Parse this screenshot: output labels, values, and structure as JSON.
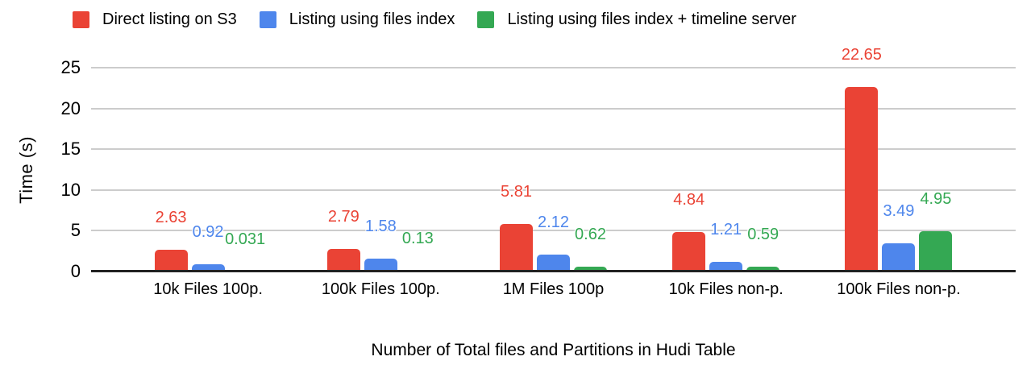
{
  "chart_data": {
    "type": "bar",
    "title": "",
    "xlabel": "Number of Total files and Partitions in Hudi Table",
    "ylabel": "Time (s)",
    "categories": [
      "10k Files 100p.",
      "100k Files 100p.",
      "1M Files 100p",
      "10k Files non-p.",
      "100k Files non-p."
    ],
    "series": [
      {
        "name": "Direct listing on S3",
        "color": "#EA4335",
        "values": [
          2.63,
          2.79,
          5.81,
          4.84,
          22.65
        ]
      },
      {
        "name": "Listing using files index",
        "color": "#4E86EC",
        "values": [
          0.92,
          1.58,
          2.12,
          1.21,
          3.49
        ]
      },
      {
        "name": "Listing using files index + timeline server",
        "color": "#34A853",
        "values": [
          0.031,
          0.13,
          0.62,
          0.59,
          4.95
        ]
      }
    ],
    "ylim": [
      0,
      25
    ],
    "yticks": [
      0,
      5,
      10,
      15,
      20,
      25
    ],
    "grid": true,
    "legend_position": "top",
    "label_placement": "above-bars",
    "colors": {
      "gridline": "#cccccc",
      "baseline": "#212121",
      "text": "#000000",
      "background": "#ffffff"
    }
  }
}
